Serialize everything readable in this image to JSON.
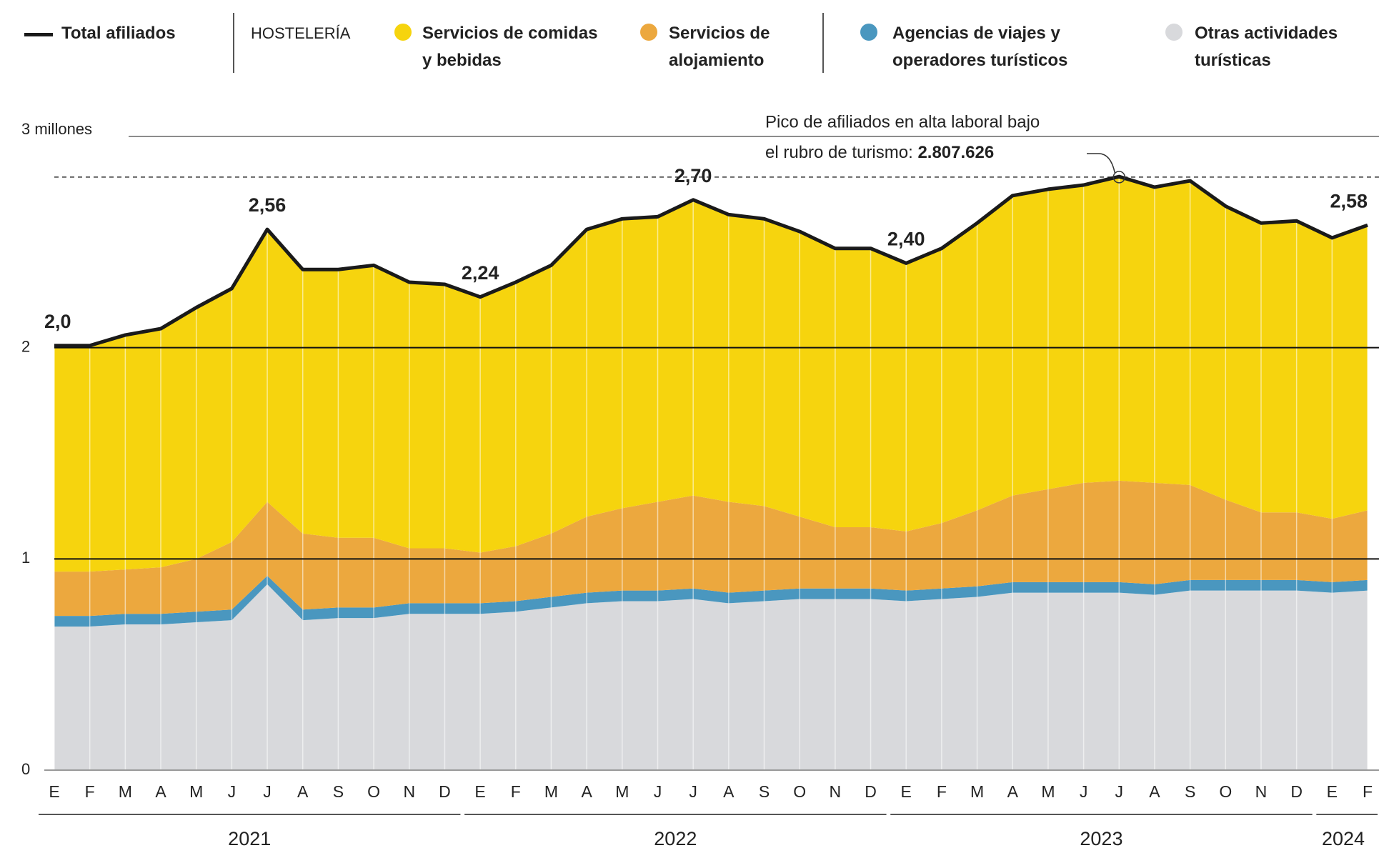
{
  "chart_data": {
    "type": "stacked_area",
    "categories": [
      "E",
      "F",
      "M",
      "A",
      "M",
      "J",
      "J",
      "A",
      "S",
      "O",
      "N",
      "D",
      "E",
      "F",
      "M",
      "A",
      "M",
      "J",
      "J",
      "A",
      "S",
      "O",
      "N",
      "D",
      "E",
      "F",
      "M",
      "A",
      "M",
      "J",
      "J",
      "A",
      "S",
      "O",
      "N",
      "D",
      "E",
      "F"
    ],
    "year_labels": [
      "2021",
      "2022",
      "2023",
      "2024"
    ],
    "legend_group_label": "HOSTELERÍA",
    "series": [
      {
        "name": "Otras actividades turísticas",
        "color": "#d8d9dc",
        "values": [
          0.68,
          0.68,
          0.69,
          0.69,
          0.7,
          0.71,
          0.88,
          0.71,
          0.72,
          0.72,
          0.74,
          0.74,
          0.74,
          0.75,
          0.77,
          0.79,
          0.8,
          0.8,
          0.81,
          0.79,
          0.8,
          0.81,
          0.81,
          0.81,
          0.8,
          0.81,
          0.82,
          0.84,
          0.84,
          0.84,
          0.84,
          0.83,
          0.85,
          0.85,
          0.85,
          0.85,
          0.84,
          0.85
        ]
      },
      {
        "name": "Agencias de viajes y operadores turísticos",
        "color": "#4a97bf",
        "values": [
          0.05,
          0.05,
          0.05,
          0.05,
          0.05,
          0.05,
          0.04,
          0.05,
          0.05,
          0.05,
          0.05,
          0.05,
          0.05,
          0.05,
          0.05,
          0.05,
          0.05,
          0.05,
          0.05,
          0.05,
          0.05,
          0.05,
          0.05,
          0.05,
          0.05,
          0.05,
          0.05,
          0.05,
          0.05,
          0.05,
          0.05,
          0.05,
          0.05,
          0.05,
          0.05,
          0.05,
          0.05,
          0.05
        ]
      },
      {
        "name": "Servicios de alojamiento",
        "color": "#eca83e",
        "values": [
          0.21,
          0.21,
          0.21,
          0.22,
          0.25,
          0.32,
          0.35,
          0.36,
          0.33,
          0.33,
          0.26,
          0.26,
          0.24,
          0.26,
          0.3,
          0.36,
          0.39,
          0.42,
          0.44,
          0.43,
          0.4,
          0.34,
          0.29,
          0.29,
          0.28,
          0.31,
          0.36,
          0.41,
          0.44,
          0.47,
          0.48,
          0.48,
          0.45,
          0.38,
          0.32,
          0.32,
          0.3,
          0.33
        ]
      },
      {
        "name": "Servicios de comidas y bebidas",
        "color": "#f6d40e",
        "values": [
          1.07,
          1.07,
          1.11,
          1.13,
          1.19,
          1.2,
          1.29,
          1.25,
          1.27,
          1.29,
          1.26,
          1.25,
          1.21,
          1.25,
          1.27,
          1.36,
          1.37,
          1.35,
          1.4,
          1.36,
          1.36,
          1.35,
          1.32,
          1.32,
          1.27,
          1.3,
          1.36,
          1.42,
          1.42,
          1.41,
          1.44,
          1.4,
          1.44,
          1.39,
          1.37,
          1.38,
          1.33,
          1.35
        ]
      }
    ],
    "total": {
      "name": "Total afiliados",
      "color": "#1a1a1a",
      "values": [
        2.01,
        2.01,
        2.06,
        2.09,
        2.19,
        2.28,
        2.56,
        2.37,
        2.37,
        2.39,
        2.31,
        2.3,
        2.24,
        2.31,
        2.39,
        2.56,
        2.61,
        2.62,
        2.7,
        2.63,
        2.61,
        2.55,
        2.47,
        2.47,
        2.4,
        2.47,
        2.59,
        2.72,
        2.75,
        2.77,
        2.81,
        2.76,
        2.79,
        2.67,
        2.59,
        2.6,
        2.52,
        2.58
      ],
      "value_labels": [
        "2,0",
        null,
        null,
        null,
        null,
        null,
        "2,56",
        null,
        null,
        null,
        null,
        null,
        "2,24",
        null,
        null,
        null,
        null,
        null,
        "2,70",
        null,
        null,
        null,
        null,
        null,
        "2,40",
        null,
        null,
        null,
        null,
        null,
        null,
        null,
        null,
        null,
        null,
        null,
        null,
        "2,58"
      ]
    },
    "annotation": {
      "lines": [
        "Pico de afiliados en alta laboral bajo",
        "el rubro de turismo:"
      ],
      "value": 2.807626,
      "value_label": "2.807.626",
      "index": 30
    },
    "ylim": [
      0,
      3
    ],
    "yticks": [
      0,
      1,
      2,
      {
        "value": 3,
        "label": "3 millones"
      }
    ],
    "grid": true
  }
}
